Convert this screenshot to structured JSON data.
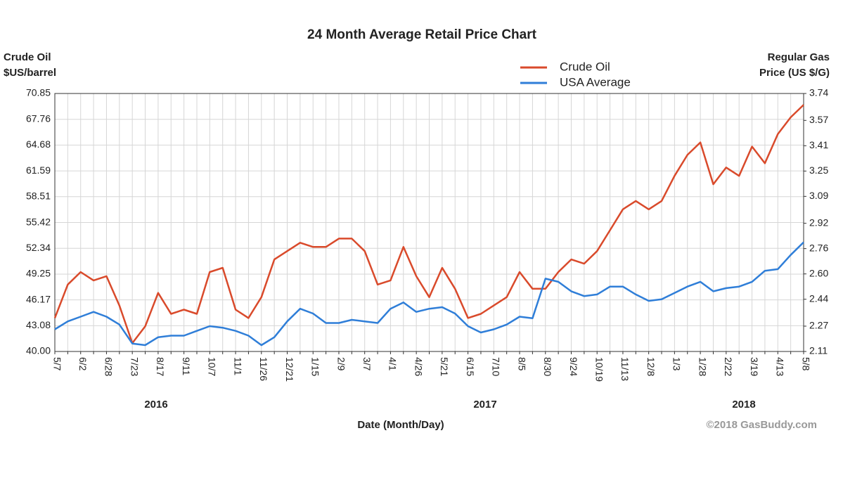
{
  "chart_data": {
    "type": "line",
    "title": "24 Month Average Retail Price Chart",
    "y_label": [
      "Crude Oil",
      "$US/barrel"
    ],
    "y2_label": [
      "Regular Gas",
      "Price (US $/G)"
    ],
    "x_label": "Date (Month/Day)",
    "year_labels": [
      "2016",
      "2017",
      "2018"
    ],
    "credit": "©2018 GasBuddy.com",
    "categories": [
      "5/7",
      null,
      "6/2",
      null,
      "6/28",
      null,
      "7/23",
      null,
      "8/17",
      null,
      "9/11",
      null,
      "10/7",
      null,
      "11/1",
      null,
      "11/26",
      null,
      "12/21",
      null,
      "1/15",
      null,
      "2/9",
      null,
      "3/7",
      null,
      "4/1",
      null,
      "4/26",
      null,
      "5/21",
      null,
      "6/15",
      null,
      "7/10",
      null,
      "8/5",
      null,
      "8/30",
      null,
      "9/24",
      null,
      "10/19",
      null,
      "11/13",
      null,
      "12/8",
      null,
      "1/3",
      null,
      "1/28",
      null,
      "2/22",
      null,
      "3/19",
      null,
      "4/13",
      null,
      "5/8"
    ],
    "series": [
      {
        "name": "Crude Oil",
        "color": "#d94a2b",
        "values": [
          44,
          48,
          49.5,
          48.5,
          49,
          45.5,
          41,
          43,
          47,
          44.5,
          45,
          44.5,
          49.5,
          50,
          45,
          44,
          46.5,
          51,
          52,
          53,
          52.5,
          52.5,
          53.5,
          53.5,
          52,
          48,
          48.5,
          52.5,
          49,
          46.5,
          50,
          47.5,
          44,
          44.5,
          45.5,
          46.5,
          49.5,
          47.5,
          47.5,
          49.5,
          51,
          50.5,
          52,
          54.5,
          57,
          58,
          57,
          58,
          61,
          63.5,
          65,
          60,
          62,
          61,
          64.5,
          62.5,
          66,
          68,
          69.5
        ]
      },
      {
        "name": "USA Average",
        "color": "#2f7ed8",
        "axis": "y2",
        "values": [
          2.25,
          2.3,
          2.33,
          2.36,
          2.33,
          2.28,
          2.16,
          2.15,
          2.2,
          2.21,
          2.21,
          2.24,
          2.27,
          2.26,
          2.24,
          2.21,
          2.15,
          2.2,
          2.3,
          2.38,
          2.35,
          2.29,
          2.29,
          2.31,
          2.3,
          2.29,
          2.38,
          2.42,
          2.36,
          2.38,
          2.39,
          2.35,
          2.27,
          2.23,
          2.25,
          2.28,
          2.33,
          2.32,
          2.57,
          2.55,
          2.49,
          2.46,
          2.47,
          2.52,
          2.52,
          2.47,
          2.43,
          2.44,
          2.48,
          2.52,
          2.55,
          2.49,
          2.51,
          2.52,
          2.55,
          2.62,
          2.63,
          2.72,
          2.8
        ]
      }
    ],
    "ylim": [
      40,
      70.85
    ],
    "yticks": [
      {
        "value": 40,
        "label": "40.00"
      },
      43.08,
      46.17,
      49.25,
      52.34,
      55.42,
      58.51,
      61.59,
      64.68,
      67.76,
      70.85
    ],
    "y2lim": [
      2.11,
      3.74
    ],
    "y2ticks": [
      2.11,
      2.27,
      2.44,
      {
        "value": 2.6,
        "label": "2.60"
      },
      2.76,
      2.92,
      3.09,
      3.25,
      3.41,
      3.57,
      3.74
    ],
    "grid": true,
    "legend": "top"
  }
}
